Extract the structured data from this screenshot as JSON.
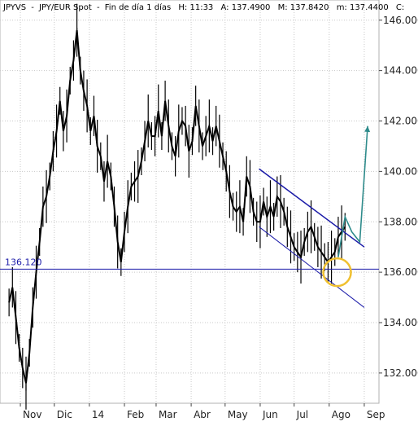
{
  "header": {
    "symbol": "JPYVS",
    "title": "JPY/EUR Spot",
    "timeframe": "Fin de día 1 días",
    "high": "H: 11:33",
    "ask": "A: 137.4900",
    "mid": "M: 137.8420",
    "min": "m: 137.4400",
    "close": "C:"
  },
  "colors": {
    "price": "#000000",
    "channel": "#1a1aa8",
    "support": "#1a1aa8",
    "projection": "#2e8b8b",
    "circle": "#f0c030",
    "grid": "#c8c8c8"
  },
  "chart_data": {
    "type": "line",
    "title": "JPY/EUR Spot",
    "ylim": [
      130.8,
      146.8
    ],
    "y_ticks": [
      "132.000",
      "134.000",
      "136.000",
      "138.000",
      "140.000",
      "142.000",
      "144.000",
      "146.000"
    ],
    "y_tick_values": [
      132,
      134,
      136,
      138,
      140,
      142,
      144,
      146
    ],
    "x_months": [
      "Nov",
      "Dic",
      "14",
      "Feb",
      "Mar",
      "Abr",
      "May",
      "Jun",
      "Jul",
      "Ago",
      "Sep"
    ],
    "xlim": [
      "2013-10-14",
      "2014-09-14"
    ],
    "x_month_dates": [
      "2013-11-01",
      "2013-12-01",
      "2014-01-01",
      "2014-02-01",
      "2014-03-01",
      "2014-04-01",
      "2014-05-01",
      "2014-06-01",
      "2014-07-01",
      "2014-08-01",
      "2014-09-01"
    ],
    "grid": true,
    "price": {
      "x": [
        "2013-10-22",
        "2013-10-25",
        "2013-10-28",
        "2013-10-31",
        "2013-11-03",
        "2013-11-06",
        "2013-11-09",
        "2013-11-12",
        "2013-11-15",
        "2013-11-18",
        "2013-11-21",
        "2013-11-24",
        "2013-11-27",
        "2013-11-30",
        "2013-12-03",
        "2013-12-06",
        "2013-12-09",
        "2013-12-12",
        "2013-12-15",
        "2013-12-18",
        "2013-12-21",
        "2013-12-24",
        "2013-12-27",
        "2013-12-30",
        "2014-01-02",
        "2014-01-05",
        "2014-01-08",
        "2014-01-11",
        "2014-01-14",
        "2014-01-17",
        "2014-01-20",
        "2014-01-23",
        "2014-01-26",
        "2014-01-29",
        "2014-02-01",
        "2014-02-04",
        "2014-02-07",
        "2014-02-10",
        "2014-02-13",
        "2014-02-16",
        "2014-02-19",
        "2014-02-22",
        "2014-02-25",
        "2014-02-28",
        "2014-03-03",
        "2014-03-06",
        "2014-03-09",
        "2014-03-12",
        "2014-03-15",
        "2014-03-18",
        "2014-03-21",
        "2014-03-24",
        "2014-03-27",
        "2014-03-30",
        "2014-04-02",
        "2014-04-05",
        "2014-04-08",
        "2014-04-11",
        "2014-04-14",
        "2014-04-17",
        "2014-04-20",
        "2014-04-23",
        "2014-04-26",
        "2014-04-29",
        "2014-05-02",
        "2014-05-05",
        "2014-05-08",
        "2014-05-11",
        "2014-05-14",
        "2014-05-17",
        "2014-05-20",
        "2014-05-23",
        "2014-05-26",
        "2014-05-29",
        "2014-06-01",
        "2014-06-04",
        "2014-06-07",
        "2014-06-10",
        "2014-06-13",
        "2014-06-16",
        "2014-06-19",
        "2014-06-22",
        "2014-06-25",
        "2014-06-28",
        "2014-07-01",
        "2014-07-04",
        "2014-07-07",
        "2014-07-10",
        "2014-07-13",
        "2014-07-16",
        "2014-07-19",
        "2014-07-22",
        "2014-07-25",
        "2014-07-28",
        "2014-07-31",
        "2014-08-03",
        "2014-08-06",
        "2014-08-09",
        "2014-08-12",
        "2014-08-15"
      ],
      "y": [
        134.8,
        135.4,
        134.2,
        133.0,
        132.2,
        131.6,
        132.8,
        134.6,
        136.0,
        137.2,
        138.6,
        139.0,
        139.8,
        140.8,
        141.6,
        142.8,
        141.6,
        142.2,
        143.6,
        144.4,
        145.6,
        144.0,
        143.2,
        142.6,
        141.6,
        142.2,
        141.0,
        140.6,
        139.6,
        140.4,
        139.8,
        138.6,
        137.2,
        136.4,
        137.6,
        138.6,
        139.4,
        139.6,
        139.8,
        140.4,
        141.2,
        142.0,
        141.4,
        141.4,
        142.4,
        141.4,
        142.8,
        141.8,
        141.0,
        140.6,
        141.6,
        142.0,
        141.8,
        140.8,
        141.2,
        142.6,
        141.8,
        141.0,
        141.4,
        141.8,
        141.2,
        141.8,
        141.2,
        140.6,
        140.0,
        139.2,
        138.6,
        138.4,
        138.6,
        138.0,
        139.8,
        139.4,
        138.4,
        138.0,
        138.0,
        138.8,
        138.2,
        138.6,
        138.2,
        139.0,
        138.8,
        138.4,
        137.8,
        137.4,
        137.0,
        136.8,
        136.6,
        137.2,
        137.6,
        137.8,
        137.4,
        137.0,
        136.8,
        136.6,
        136.4,
        136.6,
        136.8,
        137.4,
        137.6,
        137.8
      ],
      "low": [
        131.3
      ],
      "high": [
        145.7
      ]
    },
    "support": {
      "value": 136.12,
      "label": "136.120",
      "x": [
        "2013-10-14",
        "2014-09-14"
      ]
    },
    "channel_upper": {
      "x": [
        "2014-05-31",
        "2014-09-01"
      ],
      "y": [
        140.1,
        137.0
      ]
    },
    "channel_lower": {
      "x": [
        "2014-05-31",
        "2014-09-01"
      ],
      "y": [
        137.8,
        134.6
      ]
    },
    "projection": {
      "x": [
        "2014-08-09",
        "2014-08-15",
        "2014-08-21",
        "2014-08-28",
        "2014-09-04"
      ],
      "y": [
        136.6,
        138.2,
        137.6,
        137.2,
        141.8
      ]
    },
    "circle_marker": {
      "x": "2014-08-08",
      "y": 136.0
    }
  }
}
